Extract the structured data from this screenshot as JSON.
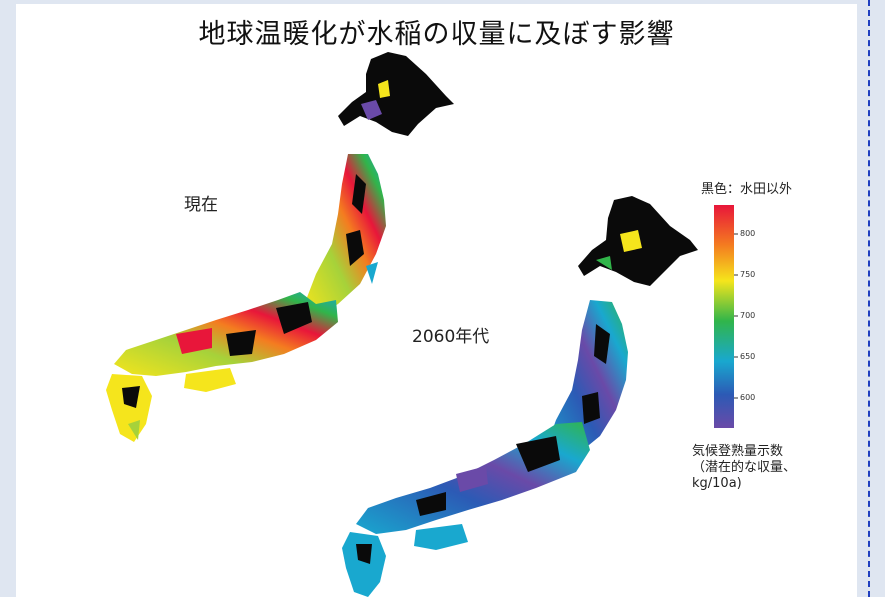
{
  "title": "地球温暖化が水稲の収量に及ぼす影響",
  "maps": {
    "present_label": "現在",
    "future_label": "2060年代"
  },
  "legend": {
    "title": "黒色：水田以外",
    "ticks": [
      "800",
      "750",
      "700",
      "650",
      "600"
    ],
    "description": [
      "気候登熟量示数",
      "（潜在的な収量、",
      "kg/10a)"
    ],
    "colors": [
      "#e8163a",
      "#f47c20",
      "#f5e51c",
      "#31b54a",
      "#19a8cf",
      "#2c5ab5",
      "#6a4aa8"
    ]
  }
}
